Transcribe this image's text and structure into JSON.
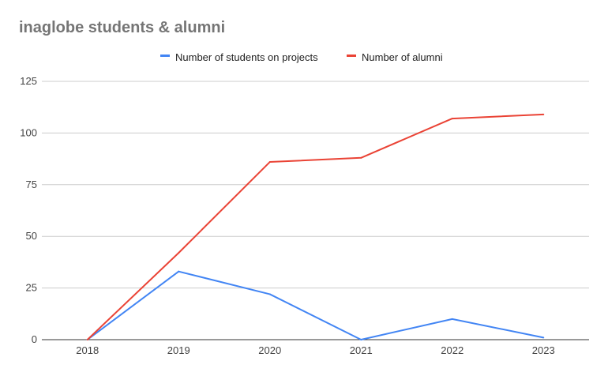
{
  "chart_data": {
    "type": "line",
    "title": "inaglobe students & alumni",
    "xlabel": "",
    "ylabel": "",
    "categories": [
      "2018",
      "2019",
      "2020",
      "2021",
      "2022",
      "2023"
    ],
    "series": [
      {
        "name": "Number of students on projects",
        "color": "#4285f4",
        "values": [
          0,
          33,
          22,
          0,
          10,
          1
        ]
      },
      {
        "name": "Number of alumni",
        "color": "#ea4335",
        "values": [
          0,
          42,
          86,
          88,
          107,
          109
        ]
      }
    ],
    "ylim": [
      0,
      125
    ],
    "yticks": [
      "0",
      "25",
      "50",
      "75",
      "100",
      "125"
    ],
    "grid": true,
    "legend": "top-center"
  }
}
